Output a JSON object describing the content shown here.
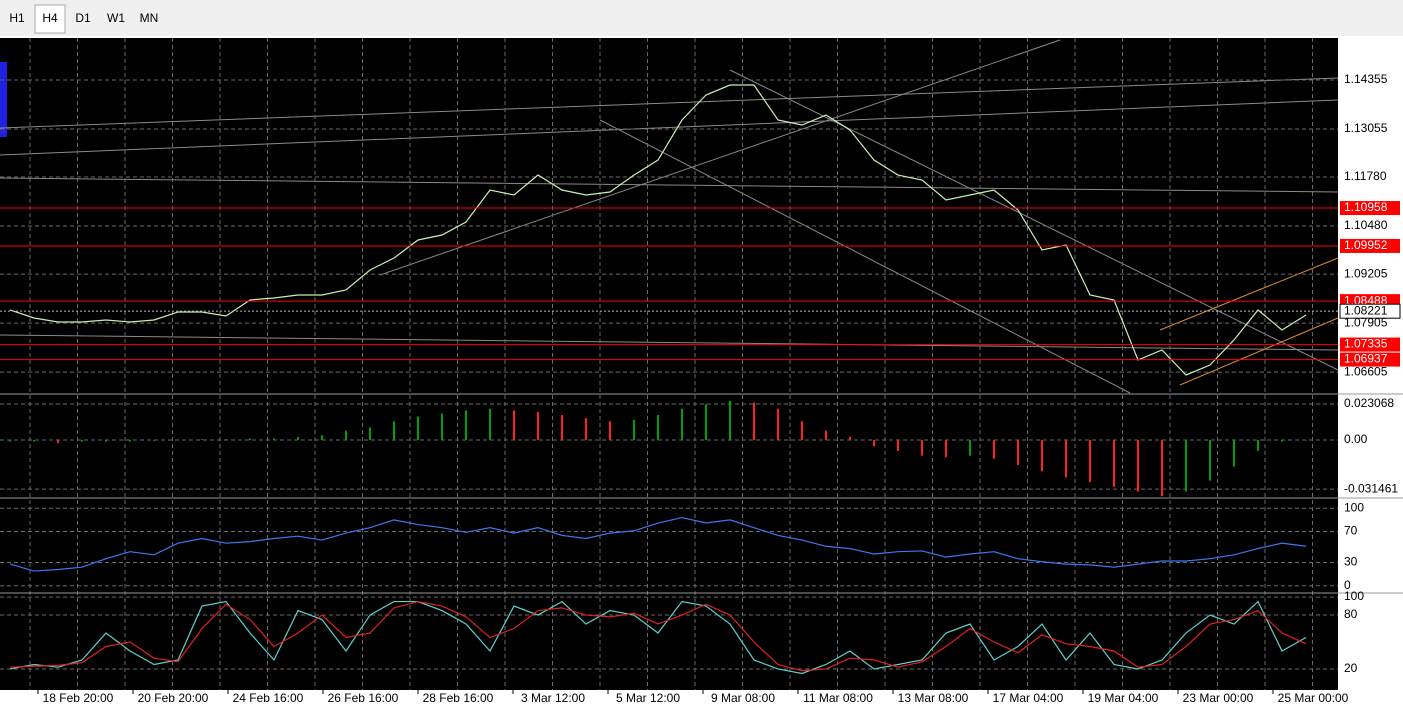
{
  "toolbar": {
    "tabs": [
      "H1",
      "H4",
      "D1",
      "W1",
      "MN"
    ],
    "active": "H4"
  },
  "time_axis": {
    "labels": [
      "18 Feb 20:00",
      "20 Feb 20:00",
      "24 Feb 16:00",
      "26 Feb 16:00",
      "28 Feb 16:00",
      "3 Mar 12:00",
      "5 Mar 12:00",
      "9 Mar 08:00",
      "11 Mar 08:00",
      "13 Mar 08:00",
      "17 Mar 04:00",
      "19 Mar 04:00",
      "23 Mar 00:00",
      "25 Mar 00:00"
    ]
  },
  "chart_data": [
    {
      "type": "line",
      "color": "#c8f0b4",
      "ylim": [
        1.0605,
        1.1547
      ],
      "yticks": [
        1.14355,
        1.13055,
        {
          "value": 1.1178,
          "label": "1.11780"
        },
        {
          "value": 1.1048,
          "label": "1.10480"
        },
        1.09205,
        1.07905,
        1.06605
      ],
      "values": [
        1.08253,
        1.0804,
        1.07934,
        1.07934,
        1.07987,
        1.07934,
        1.07987,
        1.082,
        1.082,
        1.08093,
        1.08518,
        1.08571,
        1.08651,
        1.08651,
        1.08783,
        1.09314,
        1.09632,
        1.1011,
        1.10242,
        1.10587,
        1.11436,
        1.11304,
        1.11834,
        1.11436,
        1.11304,
        1.11383,
        1.11834,
        1.12232,
        1.13294,
        1.13957,
        1.14222,
        1.14222,
        1.13294,
        1.13161,
        1.13426,
        1.13028,
        1.12232,
        1.11834,
        1.11702,
        1.11171,
        1.11304,
        1.11436,
        1.10906,
        1.09845,
        1.09977,
        1.08651,
        1.08518,
        1.06926,
        1.07191,
        1.06528,
        1.06793,
        1.07457,
        1.08253,
        1.07722,
        1.0812
      ],
      "levels": [
        1.10958,
        1.09952,
        1.08488,
        1.07335,
        1.06937
      ],
      "level_color": "#ff0000",
      "current_price": 1.08221,
      "grid": true
    },
    {
      "type": "bar",
      "ylim": [
        -0.0365,
        0.0282
      ],
      "yticks": [
        0.023068,
        {
          "value": 0,
          "label": "0.00"
        },
        -0.031461
      ],
      "rising_color": "#00a000",
      "falling_color": "#ff2020",
      "values": [
        -0.001,
        -0.001,
        -0.002,
        -0.001,
        -0.001,
        -0.001,
        -0.0005,
        0,
        0.0005,
        0.0005,
        0.001,
        0.001,
        0.002,
        0.003,
        0.006,
        0.008,
        0.012,
        0.015,
        0.017,
        0.019,
        0.02,
        0.019,
        0.018,
        0.016,
        0.014,
        0.012,
        0.013,
        0.016,
        0.02,
        0.023,
        0.025,
        0.024,
        0.02,
        0.012,
        0.006,
        0.002,
        -0.004,
        -0.007,
        -0.01,
        -0.011,
        -0.01,
        -0.012,
        -0.016,
        -0.02,
        -0.024,
        -0.027,
        -0.03,
        -0.033,
        -0.036,
        -0.033,
        -0.026,
        -0.017,
        -0.007,
        -0.001,
        0
      ],
      "grid": true
    },
    {
      "type": "line",
      "color": "#3c78f0",
      "ylim": [
        -8,
        110.7
      ],
      "yticks": [
        100,
        70,
        30,
        0
      ],
      "values": [
        28,
        19,
        21,
        24,
        35,
        44,
        40,
        55,
        61,
        55,
        57,
        61,
        64,
        59,
        68,
        75,
        85,
        79,
        75,
        69,
        75,
        68,
        75,
        65,
        61,
        68,
        71,
        81,
        88,
        81,
        85,
        75,
        65,
        59,
        51,
        48,
        41,
        44,
        45,
        37,
        41,
        44,
        35,
        31,
        28,
        27,
        24,
        28,
        32,
        32,
        35,
        40,
        48,
        55,
        51
      ],
      "grid": true
    },
    {
      "type": "line",
      "ylim": [
        -3.4,
        102.3
      ],
      "yticks": [
        100,
        80,
        20
      ],
      "series": [
        {
          "color": "#5fd0d0",
          "values": [
            20,
            25,
            22,
            30,
            60,
            40,
            25,
            30,
            90,
            95,
            60,
            30,
            85,
            75,
            40,
            80,
            95,
            95,
            85,
            70,
            40,
            90,
            80,
            95,
            70,
            85,
            80,
            60,
            95,
            90,
            70,
            30,
            20,
            15,
            25,
            40,
            20,
            25,
            30,
            60,
            70,
            30,
            45,
            70,
            30,
            60,
            25,
            20,
            30,
            60,
            80,
            70,
            95,
            40,
            55
          ]
        },
        {
          "color": "#e02020",
          "values": [
            22,
            23,
            24,
            27,
            45,
            50,
            32,
            28,
            65,
            92,
            75,
            45,
            60,
            80,
            55,
            60,
            88,
            95,
            90,
            78,
            55,
            65,
            85,
            88,
            80,
            78,
            82,
            70,
            80,
            92,
            80,
            50,
            25,
            18,
            20,
            32,
            30,
            22,
            28,
            45,
            65,
            50,
            38,
            58,
            48,
            45,
            40,
            22,
            25,
            45,
            70,
            75,
            85,
            60,
            48
          ]
        }
      ],
      "grid": true
    }
  ]
}
